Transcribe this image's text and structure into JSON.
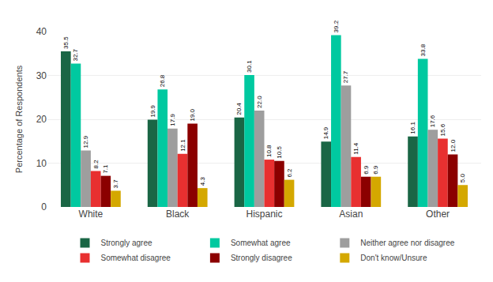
{
  "chart_data": {
    "type": "bar",
    "categories": [
      "White",
      "Black",
      "Hispanic",
      "Asian",
      "Other"
    ],
    "series": [
      {
        "name": "Strongly agree",
        "color": "#1a6645",
        "values": [
          35.5,
          19.9,
          20.4,
          14.9,
          16.1
        ],
        "value_labels": [
          "35.5",
          "19.9",
          "20.4",
          "14.9",
          "16.1"
        ]
      },
      {
        "name": "Somewhat agree",
        "color": "#00c9a0",
        "values": [
          32.7,
          26.8,
          30.1,
          39.2,
          33.8
        ],
        "value_labels": [
          "32.7",
          "26.8",
          "30.1",
          "39.2",
          "33.8"
        ]
      },
      {
        "name": "Neither agree nor disagree",
        "color": "#9e9e9e",
        "values": [
          12.9,
          17.9,
          22.0,
          27.7,
          17.6
        ],
        "value_labels": [
          "12.9",
          "17.9",
          "22.0",
          "27.7",
          "17.6"
        ]
      },
      {
        "name": "Somewhat disagree",
        "color": "#e83030",
        "values": [
          8.2,
          12.1,
          10.8,
          11.4,
          15.6
        ],
        "value_labels": [
          "8.2",
          "12.1",
          "10.8",
          "11.4",
          "15.6"
        ]
      },
      {
        "name": "Strongly disagree",
        "color": "#8b0000",
        "values": [
          7.1,
          19.0,
          10.5,
          6.9,
          12.0
        ],
        "value_labels": [
          "7.1",
          "19.0",
          "10.5",
          "6.9",
          "12.0"
        ]
      },
      {
        "name": "Don't know/Unsure",
        "color": "#d4a800",
        "values": [
          3.7,
          4.3,
          6.2,
          6.9,
          5.0
        ],
        "value_labels": [
          "3.7",
          "4.3",
          "6.2",
          "6.9",
          "5.0"
        ]
      }
    ],
    "ylabel": "Percentage of Respondents",
    "ylim": [
      0,
      40
    ],
    "yticks": [
      0,
      10,
      20,
      30,
      40
    ],
    "grid": true,
    "data_labels": true,
    "legend": "bottom"
  }
}
